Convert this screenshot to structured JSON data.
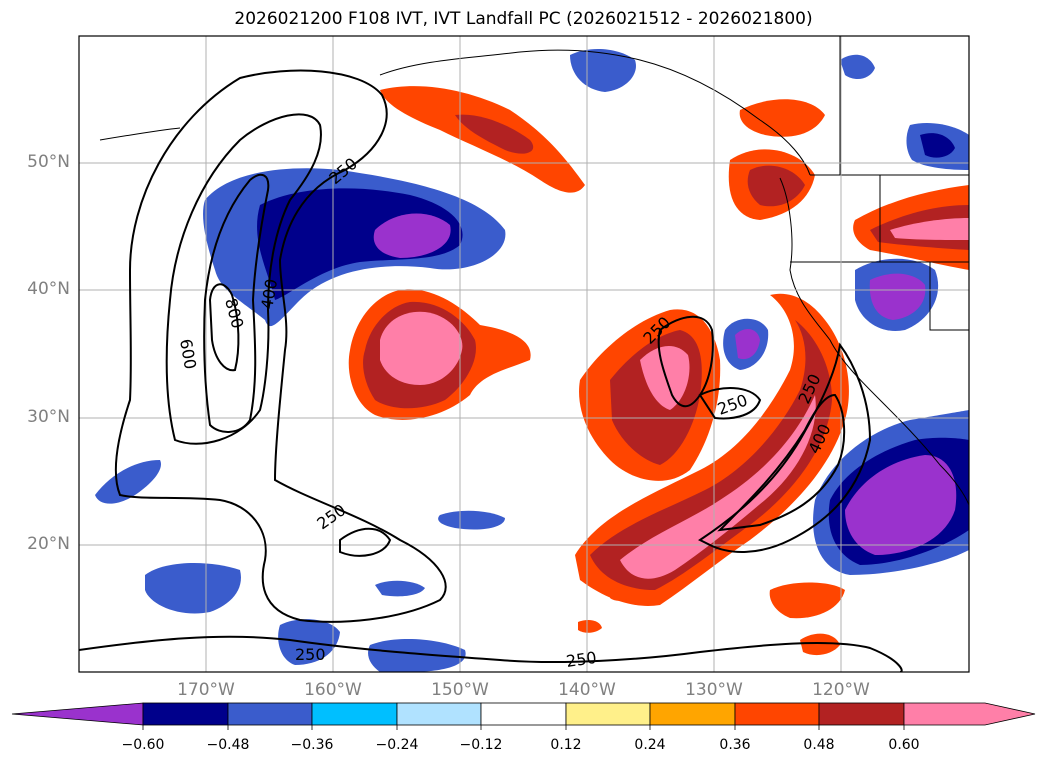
{
  "title": "2026021200 F108 IVT, IVT Landfall PC (2026021512 - 2026021800)",
  "lat_labels": [
    "50°N",
    "40°N",
    "30°N",
    "20°N"
  ],
  "lon_labels": [
    "170°W",
    "160°W",
    "150°W",
    "140°W",
    "130°W",
    "120°W"
  ],
  "contour_labels": [
    "250",
    "250",
    "250",
    "250",
    "250",
    "250",
    "250",
    "400",
    "400",
    "600",
    "800"
  ],
  "colorbar": {
    "ticks": [
      "−0.60",
      "−0.48",
      "−0.36",
      "−0.24",
      "−0.12",
      "0.12",
      "0.24",
      "0.36",
      "0.48",
      "0.60"
    ],
    "colors": [
      "#9a32cd",
      "#00008b",
      "#3a5ccc",
      "#00bfff",
      "#b0e2ff",
      "#ffffff",
      "#fff08a",
      "#ffa500",
      "#ff4500",
      "#b22222",
      "#ff7fa8"
    ]
  }
}
